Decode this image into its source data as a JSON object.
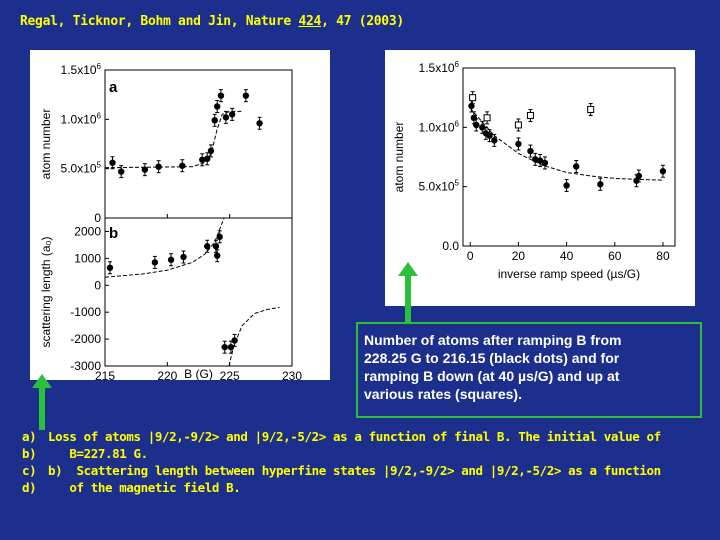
{
  "citation": {
    "prefix": "Regal, Ticknor, Bohm and Jin, Nature ",
    "volume": "424",
    "suffix": ", 47 (2003)"
  },
  "caption_box": {
    "lines": [
      "Number of atoms after ramping B from",
      "228.25 G to 216.15 (black dots) and for",
      "ramping B down (at 40 µs/G)  and up at",
      "various rates (squares)."
    ]
  },
  "bottom_text": {
    "lines": [
      {
        "label": "a)",
        "text": "Loss of atoms |9/2,-9/2> and |9/2,-5/2> as a function of final B. The initial value of"
      },
      {
        "label": "b)",
        "text": "   B=227.81 G."
      },
      {
        "label": "c)",
        "text": "b)  Scattering length between hyperfine states |9/2,-9/2> and |9/2,-5/2> as a function"
      },
      {
        "label": "d)",
        "text": "   of the magnetic field B."
      }
    ]
  },
  "colors": {
    "background": "#1c2f8c",
    "citation": "#ffff00",
    "arrow": "#2bbf3b",
    "caption_text": "#ffffff"
  },
  "chart_data": [
    {
      "id": "a",
      "type": "scatter",
      "panel_label": "a",
      "ylabel": "atom number",
      "xlim": [
        215,
        230
      ],
      "ylim": [
        0,
        1500000
      ],
      "yticks": [
        {
          "value": 0,
          "label": "0"
        },
        {
          "value": 500000,
          "label": "5.0x10",
          "exp": "5"
        },
        {
          "value": 1000000,
          "label": "1.0x10",
          "exp": "6"
        },
        {
          "value": 1500000,
          "label": "1.5x10",
          "exp": "6"
        }
      ],
      "points": [
        {
          "x": 215.6,
          "y": 560000
        },
        {
          "x": 216.3,
          "y": 470000
        },
        {
          "x": 218.2,
          "y": 490000
        },
        {
          "x": 219.3,
          "y": 520000
        },
        {
          "x": 221.2,
          "y": 530000
        },
        {
          "x": 222.8,
          "y": 590000
        },
        {
          "x": 223.2,
          "y": 600000
        },
        {
          "x": 223.5,
          "y": 680000
        },
        {
          "x": 223.8,
          "y": 990000
        },
        {
          "x": 224.0,
          "y": 1130000
        },
        {
          "x": 224.3,
          "y": 1240000
        },
        {
          "x": 224.7,
          "y": 1020000
        },
        {
          "x": 225.2,
          "y": 1050000
        },
        {
          "x": 226.3,
          "y": 1240000
        },
        {
          "x": 227.4,
          "y": 960000
        }
      ],
      "fit": [
        {
          "x": 215,
          "y": 510000
        },
        {
          "x": 222.0,
          "y": 520000
        },
        {
          "x": 223.0,
          "y": 560000
        },
        {
          "x": 223.5,
          "y": 650000
        },
        {
          "x": 224.0,
          "y": 900000
        },
        {
          "x": 224.4,
          "y": 1050000
        },
        {
          "x": 225.0,
          "y": 1080000
        },
        {
          "x": 226.0,
          "y": 1080000
        }
      ]
    },
    {
      "id": "b",
      "type": "scatter",
      "panel_label": "b",
      "xlabel": "B (G)",
      "ylabel": "scattering length (a₀)",
      "xlim": [
        215,
        230
      ],
      "ylim": [
        -3000,
        2500
      ],
      "xticks": [
        215,
        220,
        225,
        230
      ],
      "yticks": [
        -3000,
        -2000,
        -1000,
        0,
        1000,
        2000
      ],
      "points": [
        {
          "x": 215.4,
          "y": 650
        },
        {
          "x": 219.0,
          "y": 850
        },
        {
          "x": 220.3,
          "y": 950
        },
        {
          "x": 221.3,
          "y": 1050
        },
        {
          "x": 223.2,
          "y": 1450
        },
        {
          "x": 223.9,
          "y": 1450
        },
        {
          "x": 224.2,
          "y": 1800
        },
        {
          "x": 224.0,
          "y": 1100
        },
        {
          "x": 224.6,
          "y": -2300
        },
        {
          "x": 225.1,
          "y": -2300
        },
        {
          "x": 225.4,
          "y": -2050
        }
      ],
      "fit_left": [
        {
          "x": 215,
          "y": 300
        },
        {
          "x": 218,
          "y": 420
        },
        {
          "x": 220,
          "y": 560
        },
        {
          "x": 222,
          "y": 850
        },
        {
          "x": 223,
          "y": 1150
        },
        {
          "x": 223.8,
          "y": 1600
        },
        {
          "x": 224.3,
          "y": 2200
        },
        {
          "x": 224.55,
          "y": 2500
        }
      ],
      "fit_right": [
        {
          "x": 224.95,
          "y": -3000
        },
        {
          "x": 225.3,
          "y": -2300
        },
        {
          "x": 226,
          "y": -1500
        },
        {
          "x": 227,
          "y": -1050
        },
        {
          "x": 228,
          "y": -900
        },
        {
          "x": 229,
          "y": -820
        }
      ]
    },
    {
      "id": "right",
      "type": "scatter",
      "ylabel": "atom number",
      "xlabel": "inverse ramp speed (µs/G)",
      "xlim": [
        -3,
        85
      ],
      "ylim": [
        0,
        1500000
      ],
      "xticks": [
        0,
        20,
        40,
        60,
        80
      ],
      "yticks": [
        {
          "value": 0,
          "label": "0.0"
        },
        {
          "value": 500000,
          "label": "5.0x10",
          "exp": "5"
        },
        {
          "value": 1000000,
          "label": "1.0x10",
          "exp": "6"
        },
        {
          "value": 1500000,
          "label": "1.5x10",
          "exp": "6"
        }
      ],
      "dots": [
        {
          "x": 0.5,
          "y": 1180000
        },
        {
          "x": 1.5,
          "y": 1080000
        },
        {
          "x": 2.5,
          "y": 1020000
        },
        {
          "x": 5,
          "y": 1000000
        },
        {
          "x": 6.5,
          "y": 950000
        },
        {
          "x": 8,
          "y": 930000
        },
        {
          "x": 10,
          "y": 890000
        },
        {
          "x": 20,
          "y": 860000
        },
        {
          "x": 25,
          "y": 800000
        },
        {
          "x": 27,
          "y": 730000
        },
        {
          "x": 29,
          "y": 720000
        },
        {
          "x": 31,
          "y": 700000
        },
        {
          "x": 40,
          "y": 510000
        },
        {
          "x": 44,
          "y": 670000
        },
        {
          "x": 54,
          "y": 520000
        },
        {
          "x": 69,
          "y": 550000
        },
        {
          "x": 70,
          "y": 590000
        },
        {
          "x": 80,
          "y": 630000
        }
      ],
      "squares": [
        {
          "x": 1,
          "y": 1250000
        },
        {
          "x": 7,
          "y": 1080000
        },
        {
          "x": 20,
          "y": 1020000
        },
        {
          "x": 25,
          "y": 1100000
        },
        {
          "x": 50,
          "y": 1150000
        }
      ],
      "fit": [
        {
          "x": 0,
          "y": 1160000
        },
        {
          "x": 10,
          "y": 930000
        },
        {
          "x": 20,
          "y": 780000
        },
        {
          "x": 30,
          "y": 680000
        },
        {
          "x": 40,
          "y": 620000
        },
        {
          "x": 50,
          "y": 590000
        },
        {
          "x": 60,
          "y": 570000
        },
        {
          "x": 70,
          "y": 560000
        },
        {
          "x": 80,
          "y": 555000
        }
      ]
    }
  ]
}
